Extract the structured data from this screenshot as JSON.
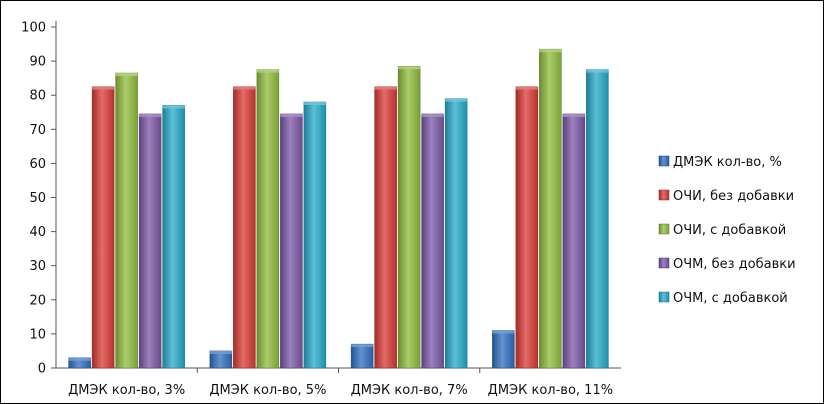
{
  "chart_data": {
    "type": "bar",
    "categories": [
      "ДМЭК кол-во, 3%",
      "ДМЭК кол-во, 5%",
      "ДМЭК кол-во, 7%",
      "ДМЭК кол-во, 11%"
    ],
    "series": [
      {
        "name": "ДМЭК кол-во, %",
        "values": [
          3,
          5,
          7,
          11
        ],
        "color": "#2e6fc0"
      },
      {
        "name": "ОЧИ, без добавки",
        "values": [
          82.5,
          82.5,
          82.5,
          82.5
        ],
        "color": "#d93a35"
      },
      {
        "name": "ОЧИ, с добавкой",
        "values": [
          86.5,
          87.5,
          88.5,
          93.5
        ],
        "color": "#8fbc3c"
      },
      {
        "name": "ОЧМ, без добавки",
        "values": [
          74.5,
          74.5,
          74.5,
          74.5
        ],
        "color": "#7b57a8"
      },
      {
        "name": "ОЧМ, с добавкой",
        "values": [
          77,
          78,
          79,
          87.5
        ],
        "color": "#25a9c9"
      }
    ],
    "title": "",
    "xlabel": "",
    "ylabel": "",
    "ylim": [
      0,
      100
    ],
    "yticks": [
      0,
      10,
      20,
      30,
      40,
      50,
      60,
      70,
      80,
      90,
      100
    ],
    "grid": false,
    "legend": "right"
  }
}
